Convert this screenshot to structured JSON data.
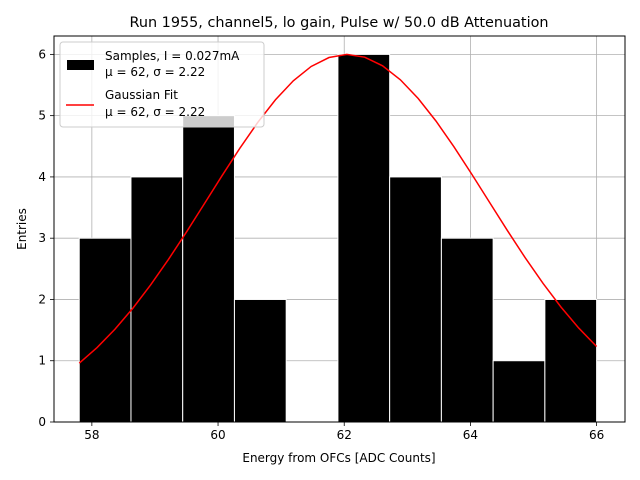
{
  "chart_data": {
    "type": "bar",
    "title": "Run 1955, channel5, lo gain, Pulse w/ 50.0 dB Attenuation",
    "xlabel": "Energy from OFCs [ADC Counts]",
    "ylabel": "Entries",
    "xlim": [
      57.4,
      66.45
    ],
    "ylim": [
      0,
      6.3
    ],
    "xticks": [
      58,
      60,
      62,
      64,
      66
    ],
    "yticks": [
      0,
      1,
      2,
      3,
      4,
      5,
      6
    ],
    "grid": true,
    "legend_position": "top-left",
    "histogram": {
      "name": "Samples",
      "bins": [
        {
          "left": 57.8,
          "right": 58.62,
          "value": 3
        },
        {
          "left": 58.62,
          "right": 59.44,
          "value": 4
        },
        {
          "left": 59.44,
          "right": 60.26,
          "value": 5
        },
        {
          "left": 60.26,
          "right": 61.08,
          "value": 2
        },
        {
          "left": 61.08,
          "right": 61.9,
          "value": 0
        },
        {
          "left": 61.9,
          "right": 62.72,
          "value": 6
        },
        {
          "left": 62.72,
          "right": 63.54,
          "value": 4
        },
        {
          "left": 63.54,
          "right": 64.36,
          "value": 3
        },
        {
          "left": 64.36,
          "right": 65.18,
          "value": 1
        },
        {
          "left": 65.18,
          "right": 66.0,
          "value": 2
        }
      ]
    },
    "fit": {
      "name": "Gaussian Fit",
      "amplitude": 6.0,
      "mu": 62.05,
      "sigma": 2.22,
      "x_range": [
        57.8,
        66.0
      ],
      "n_points": 30
    },
    "legend": [
      {
        "label_line1": "Samples, I = 0.027mA",
        "label_line2": "μ = 62, σ = 2.22",
        "color": "#000000",
        "kind": "patch"
      },
      {
        "label_line1": "Gaussian Fit",
        "label_line2": "μ = 62, σ = 2.22",
        "color": "#ff0000",
        "kind": "line"
      }
    ],
    "colors": {
      "bar": "#000000",
      "bar_edge": "#ffffff",
      "fit_line": "#ff0000",
      "grid": "#b0b0b0"
    }
  }
}
